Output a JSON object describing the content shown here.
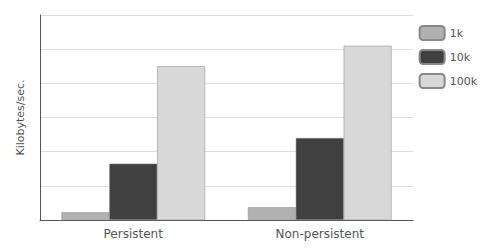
{
  "chart_data": {
    "type": "bar",
    "categories": [
      "Persistent",
      "Non-persistent"
    ],
    "series": [
      {
        "name": "1k",
        "color": "#b0b0b0",
        "values": [
          3,
          5
        ]
      },
      {
        "name": "10k",
        "color": "#404040",
        "values": [
          22,
          32
        ]
      },
      {
        "name": "100k",
        "color": "#d8d8d8",
        "values": [
          60,
          68
        ]
      }
    ],
    "ylabel": "Kilobytes/sec.",
    "ylim": [
      0,
      80
    ],
    "yticks": [
      0,
      13.333333333333334,
      26.666666666666668,
      40,
      53.333333333333336,
      66.66666666666667,
      80
    ],
    "grid": true,
    "tick_labels": "x",
    "legend": "right"
  }
}
